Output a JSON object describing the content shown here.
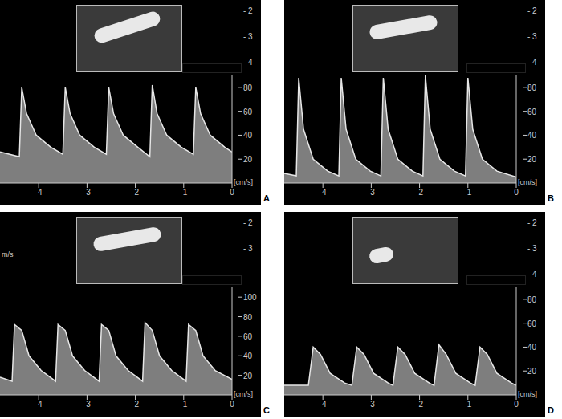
{
  "chart_data": [
    {
      "type": "area",
      "title": "A",
      "y_label": "[cm/s]",
      "depth_ticks": [
        2,
        3,
        4
      ],
      "color": "#e6e6e6",
      "grid": false,
      "x": [
        -4.8,
        -4.4,
        -4.35,
        -4.25,
        -4.05,
        -3.75,
        -3.5,
        -3.45,
        -3.35,
        -3.15,
        -2.85,
        -2.6,
        -2.55,
        -2.45,
        -2.25,
        -1.95,
        -1.7,
        -1.65,
        -1.55,
        -1.35,
        -1.05,
        -0.8,
        -0.75,
        -0.65,
        -0.45,
        -0.15,
        0
      ],
      "values": [
        26,
        22,
        80,
        58,
        40,
        30,
        24,
        80,
        58,
        40,
        30,
        24,
        80,
        58,
        40,
        30,
        22,
        82,
        58,
        40,
        30,
        24,
        80,
        58,
        40,
        30,
        26
      ],
      "xlim": [
        -4.8,
        0
      ],
      "xticks": [
        -4,
        -3,
        -2,
        -1,
        0
      ],
      "ylim": [
        0,
        90
      ],
      "yticks": [
        20,
        40,
        60,
        80
      ]
    },
    {
      "type": "area",
      "title": "B",
      "y_label": "[cm/s]",
      "depth_ticks": [
        2,
        3,
        4
      ],
      "color": "#e6e6e6",
      "grid": false,
      "x": [
        -4.8,
        -4.55,
        -4.5,
        -4.4,
        -4.2,
        -3.9,
        -3.67,
        -3.62,
        -3.52,
        -3.32,
        -3.02,
        -2.8,
        -2.75,
        -2.65,
        -2.45,
        -2.15,
        -1.93,
        -1.88,
        -1.78,
        -1.58,
        -1.28,
        -1.05,
        -1.0,
        -0.9,
        -0.7,
        -0.4,
        0
      ],
      "values": [
        8,
        6,
        88,
        45,
        20,
        10,
        6,
        88,
        45,
        20,
        10,
        6,
        88,
        45,
        20,
        10,
        6,
        90,
        45,
        20,
        10,
        6,
        88,
        45,
        20,
        10,
        5
      ],
      "xlim": [
        -4.8,
        0
      ],
      "xticks": [
        -4,
        -3,
        -2,
        -1,
        0
      ],
      "ylim": [
        0,
        90
      ],
      "yticks": [
        20,
        40,
        60,
        80
      ]
    },
    {
      "type": "area",
      "title": "C",
      "y_label": "[cm/s]",
      "side_label": "m/s",
      "depth_ticks": [
        2,
        3
      ],
      "color": "#e6e6e6",
      "grid": false,
      "x": [
        -4.8,
        -4.55,
        -4.5,
        -4.35,
        -4.2,
        -3.95,
        -3.65,
        -3.6,
        -3.45,
        -3.3,
        -3.05,
        -2.75,
        -2.7,
        -2.55,
        -2.4,
        -2.15,
        -1.85,
        -1.8,
        -1.65,
        -1.5,
        -1.25,
        -0.95,
        -0.9,
        -0.75,
        -0.6,
        -0.35,
        0
      ],
      "values": [
        18,
        14,
        72,
        66,
        40,
        25,
        14,
        72,
        66,
        40,
        25,
        14,
        72,
        66,
        40,
        25,
        14,
        74,
        66,
        40,
        25,
        14,
        72,
        66,
        40,
        25,
        16
      ],
      "xlim": [
        -4.8,
        0
      ],
      "xticks": [
        -4,
        -3,
        -2,
        -1,
        0
      ],
      "ylim": [
        0,
        110
      ],
      "yticks": [
        20,
        40,
        60,
        80,
        100
      ]
    },
    {
      "type": "area",
      "title": "D",
      "y_label": "[cm/s]",
      "depth_ticks": [
        2,
        3,
        4
      ],
      "color": "#e6e6e6",
      "grid": false,
      "x": [
        -4.8,
        -4.3,
        -4.2,
        -4.05,
        -3.85,
        -3.55,
        -3.4,
        -3.3,
        -3.15,
        -2.95,
        -2.65,
        -2.55,
        -2.45,
        -2.3,
        -2.1,
        -1.8,
        -1.7,
        -1.6,
        -1.45,
        -1.25,
        -0.95,
        -0.85,
        -0.75,
        -0.6,
        -0.4,
        -0.1,
        0
      ],
      "values": [
        8,
        8,
        40,
        34,
        18,
        10,
        8,
        40,
        34,
        18,
        10,
        8,
        40,
        34,
        18,
        10,
        8,
        42,
        34,
        18,
        10,
        8,
        40,
        34,
        18,
        10,
        8
      ],
      "xlim": [
        -4.8,
        0
      ],
      "xticks": [
        -4,
        -3,
        -2,
        -1,
        0
      ],
      "ylim": [
        0,
        90
      ],
      "yticks": [
        20,
        40,
        60,
        80
      ]
    }
  ]
}
